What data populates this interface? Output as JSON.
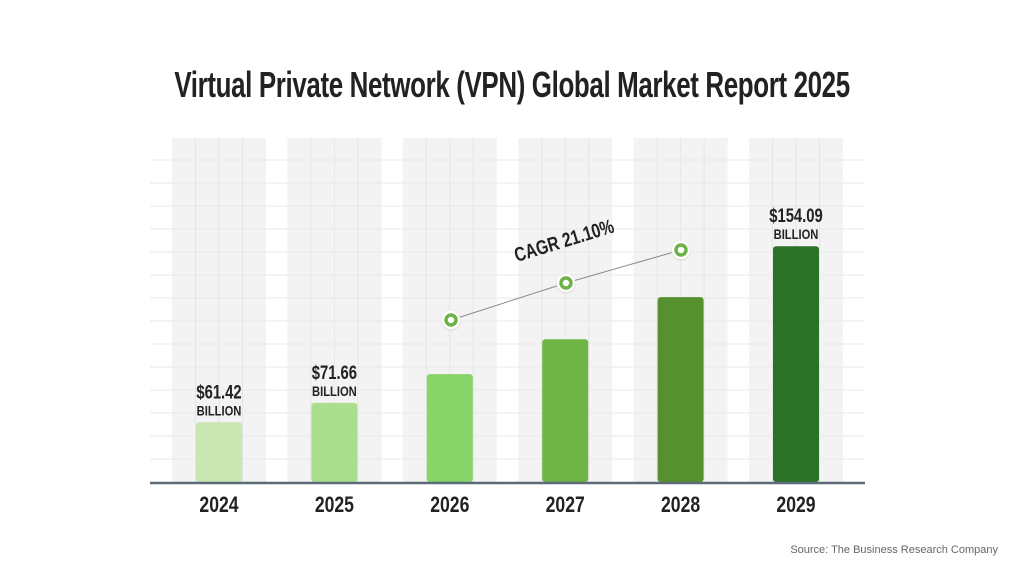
{
  "chart_data": {
    "type": "bar",
    "title": "Virtual Private Network (VPN) Global Market Report 2025",
    "categories": [
      "2024",
      "2025",
      "2026",
      "2027",
      "2028",
      "2029"
    ],
    "values": [
      61.42,
      71.66,
      86.8,
      105.1,
      127.3,
      154.09
    ],
    "value_labels": [
      {
        "amount": "$61.42",
        "unit": "BILLION"
      },
      {
        "amount": "$71.66",
        "unit": "BILLION"
      },
      null,
      null,
      null,
      {
        "amount": "$154.09",
        "unit": "BILLION"
      }
    ],
    "colors": [
      "#c9e6b3",
      "#a9de8c",
      "#88d469",
      "#6fb545",
      "#56902f",
      "#2a7226"
    ],
    "annotation": "CAGR 21.10%",
    "accent": "#6ab344",
    "grid": true,
    "legend": "none"
  },
  "source": "Source: The Business Research Company"
}
